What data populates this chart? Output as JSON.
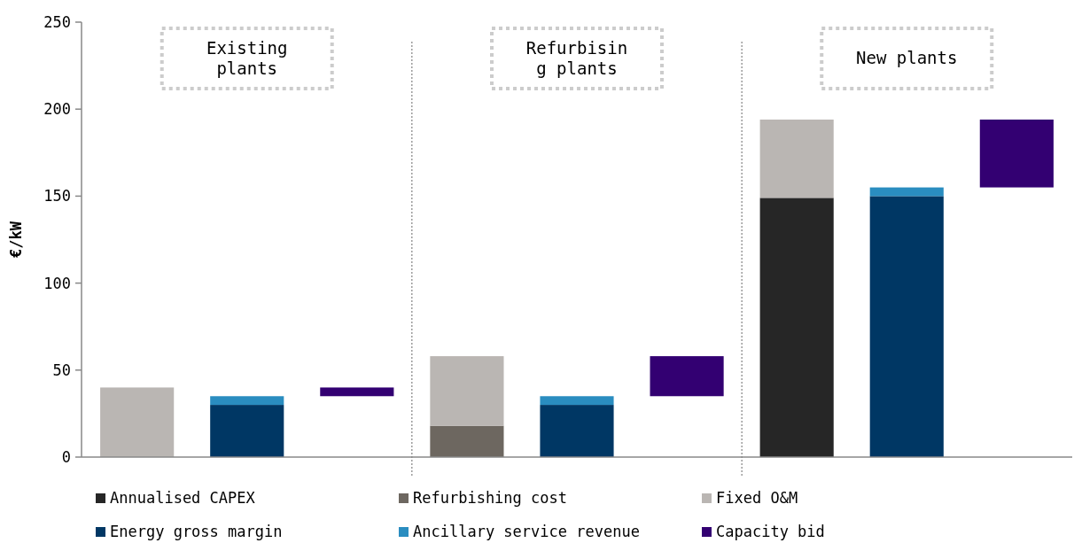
{
  "chart_data": {
    "type": "bar",
    "stacked": true,
    "ylabel": "€/kW",
    "categories": [
      null,
      null,
      null,
      null,
      null,
      null,
      null,
      null,
      null
    ],
    "ylim": [
      0,
      250
    ],
    "yticks": [
      0,
      50,
      100,
      150,
      200,
      250
    ],
    "legend": "bottom",
    "grid": false,
    "annotations": [
      "Existing\nplants",
      "Refurbisin\ng plants",
      "New plants"
    ],
    "series": [
      {
        "name": "Annualised CAPEX",
        "color": "#262626",
        "values": [
          null,
          null,
          null,
          null,
          null,
          null,
          149,
          null,
          null
        ]
      },
      {
        "name": "Refurbishing cost",
        "color": "#6d6760",
        "values": [
          null,
          null,
          null,
          18,
          null,
          null,
          null,
          null,
          null
        ]
      },
      {
        "name": "Fixed O&M",
        "color": "#bab6b3",
        "values": [
          40,
          null,
          null,
          40,
          null,
          null,
          45,
          null,
          null
        ]
      },
      {
        "name": "Energy gross margin",
        "color": "#003764",
        "values": [
          null,
          30,
          null,
          null,
          30,
          null,
          null,
          150,
          null
        ]
      },
      {
        "name": "Ancillary service revenue",
        "color": "#2a8dc0",
        "values": [
          null,
          5,
          null,
          null,
          5,
          null,
          null,
          5,
          null
        ]
      },
      {
        "name": "Capacity bid",
        "color": "#330072",
        "values": [
          null,
          null,
          5,
          null,
          null,
          23,
          null,
          null,
          39
        ],
        "base": [
          null,
          null,
          35,
          null,
          null,
          35,
          null,
          null,
          155
        ]
      }
    ]
  }
}
